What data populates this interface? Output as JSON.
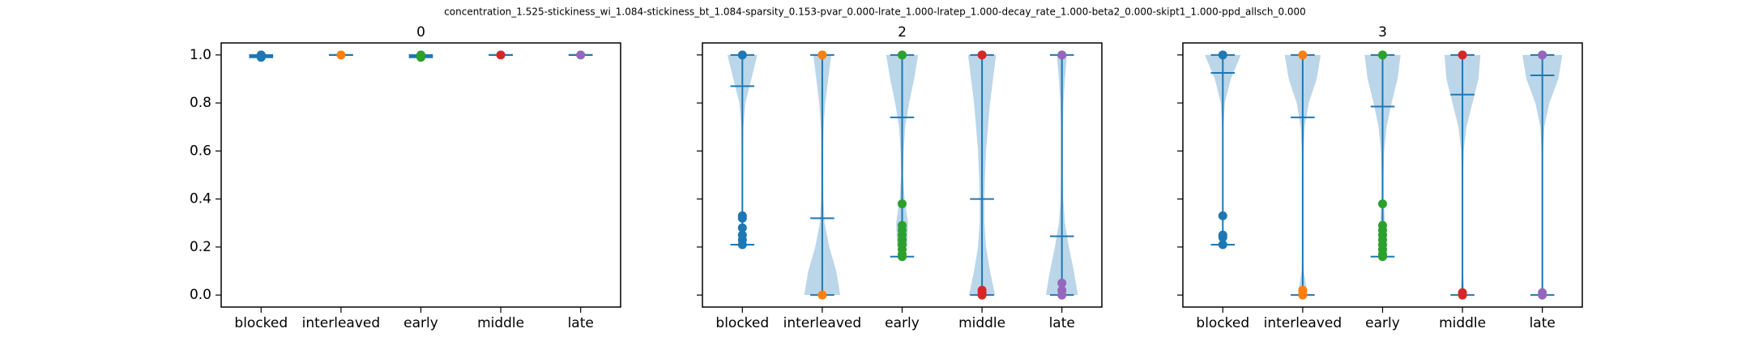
{
  "title": "concentration_1.525-stickiness_wi_1.084-stickiness_bt_1.084-sparsity_0.153-pvar_0.000-lrate_1.000-lratep_1.000-decay_rate_1.000-beta2_0.000-skipt1_1.000-ppd_allsch_0.000",
  "chart_data": [
    {
      "type": "violin",
      "title": "0",
      "categories": [
        "blocked",
        "interleaved",
        "early",
        "middle",
        "late"
      ],
      "colors": [
        "#1f77b4",
        "#ff7f0e",
        "#2ca02c",
        "#d62728",
        "#9467bd"
      ],
      "body_color": "#1f77b4",
      "ylim": [
        -0.05,
        1.05
      ],
      "yticks": [
        {
          "value": 0,
          "label": "0.0"
        },
        {
          "value": 0.2,
          "label": "0.2"
        },
        {
          "value": 0.4,
          "label": "0.4"
        },
        {
          "value": 0.6,
          "label": "0.6"
        },
        {
          "value": 0.8,
          "label": "0.8"
        },
        {
          "value": 1,
          "label": "1.0"
        }
      ],
      "violins": [
        {
          "min": 0.99,
          "max": 1,
          "mean": 0.995,
          "points": [
            1,
            0.99
          ]
        },
        {
          "min": 1,
          "max": 1,
          "mean": 1,
          "points": [
            1
          ]
        },
        {
          "min": 0.99,
          "max": 1,
          "mean": 0.995,
          "points": [
            1,
            0.99
          ]
        },
        {
          "min": 1,
          "max": 1,
          "mean": 1,
          "points": [
            1
          ]
        },
        {
          "min": 1,
          "max": 1,
          "mean": 1,
          "points": [
            1
          ]
        }
      ]
    },
    {
      "type": "violin",
      "title": "2",
      "categories": [
        "blocked",
        "interleaved",
        "early",
        "middle",
        "late"
      ],
      "colors": [
        "#1f77b4",
        "#ff7f0e",
        "#2ca02c",
        "#d62728",
        "#9467bd"
      ],
      "body_color": "#1f77b4",
      "ylim": [
        -0.05,
        1.05
      ],
      "yticks": [
        0,
        0.2,
        0.4,
        0.6,
        0.8,
        1
      ],
      "density_y": [
        0,
        0.1,
        0.2,
        0.3,
        0.4,
        0.5,
        0.6,
        0.7,
        0.8,
        0.9,
        1
      ],
      "violins": [
        {
          "min": 0.21,
          "max": 1,
          "mean": 0.87,
          "points": [
            1,
            0.33,
            0.32,
            0.28,
            0.25,
            0.23,
            0.21
          ],
          "density": [
            null,
            null,
            0.03,
            0.04,
            0.02,
            0.02,
            0.03,
            0.05,
            0.15,
            0.45,
            0.75
          ]
        },
        {
          "min": 0,
          "max": 1,
          "mean": 0.32,
          "points": [
            1,
            0
          ],
          "density": [
            0.9,
            0.7,
            0.35,
            0.12,
            0.06,
            0.05,
            0.05,
            0.07,
            0.15,
            0.3,
            0.45
          ]
        },
        {
          "min": 0.16,
          "max": 1,
          "mean": 0.74,
          "points": [
            1,
            0.38,
            0.29,
            0.27,
            0.25,
            0.23,
            0.21,
            0.19,
            0.17,
            0.16
          ],
          "density": [
            null,
            null,
            0.25,
            0.3,
            0.12,
            0.05,
            0.08,
            0.15,
            0.35,
            0.6,
            0.8
          ]
        },
        {
          "min": 0,
          "max": 1,
          "mean": 0.4,
          "points": [
            1,
            0.02,
            0.01,
            0
          ],
          "density": [
            0.65,
            0.4,
            0.2,
            0.12,
            0.12,
            0.15,
            0.2,
            0.3,
            0.4,
            0.55,
            0.7
          ]
        },
        {
          "min": 0,
          "max": 1,
          "mean": 0.245,
          "points": [
            1,
            0.05,
            0.02,
            0
          ],
          "density": [
            0.8,
            0.6,
            0.35,
            0.15,
            0.07,
            0.05,
            0.05,
            0.05,
            0.08,
            0.15,
            0.25
          ]
        }
      ]
    },
    {
      "type": "violin",
      "title": "3",
      "categories": [
        "blocked",
        "interleaved",
        "early",
        "middle",
        "late"
      ],
      "colors": [
        "#1f77b4",
        "#ff7f0e",
        "#2ca02c",
        "#d62728",
        "#9467bd"
      ],
      "body_color": "#1f77b4",
      "ylim": [
        -0.05,
        1.05
      ],
      "yticks": [
        0,
        0.2,
        0.4,
        0.6,
        0.8,
        1
      ],
      "density_y": [
        0,
        0.1,
        0.2,
        0.3,
        0.4,
        0.5,
        0.6,
        0.7,
        0.8,
        0.9,
        1
      ],
      "violins": [
        {
          "min": 0.21,
          "max": 1,
          "mean": 0.925,
          "points": [
            1,
            0.33,
            0.25,
            0.24,
            0.21
          ],
          "density": [
            null,
            null,
            0.03,
            0.03,
            0.02,
            0.02,
            0.02,
            0.03,
            0.1,
            0.4,
            0.9
          ]
        },
        {
          "min": 0,
          "max": 1,
          "mean": 0.74,
          "points": [
            1,
            0.02,
            0
          ],
          "density": [
            0.25,
            0.05,
            0.03,
            0.03,
            0.03,
            0.03,
            0.04,
            0.1,
            0.3,
            0.7,
            0.9
          ]
        },
        {
          "min": 0.16,
          "max": 1,
          "mean": 0.785,
          "points": [
            1,
            0.38,
            0.29,
            0.27,
            0.25,
            0.23,
            0.21,
            0.19,
            0.17,
            0.16
          ],
          "density": [
            null,
            null,
            0.15,
            0.12,
            0.05,
            0.05,
            0.08,
            0.2,
            0.45,
            0.75,
            0.9
          ]
        },
        {
          "min": 0,
          "max": 1,
          "mean": 0.835,
          "points": [
            1,
            0.01,
            0
          ],
          "density": [
            0.1,
            0.02,
            0.02,
            0.02,
            0.02,
            0.03,
            0.06,
            0.2,
            0.5,
            0.8,
            0.9
          ]
        },
        {
          "min": 0,
          "max": 1,
          "mean": 0.915,
          "points": [
            1,
            0.01,
            0
          ],
          "density": [
            0.05,
            0.02,
            0.02,
            0.02,
            0.02,
            0.02,
            0.04,
            0.1,
            0.35,
            0.8,
            1
          ]
        }
      ]
    }
  ]
}
